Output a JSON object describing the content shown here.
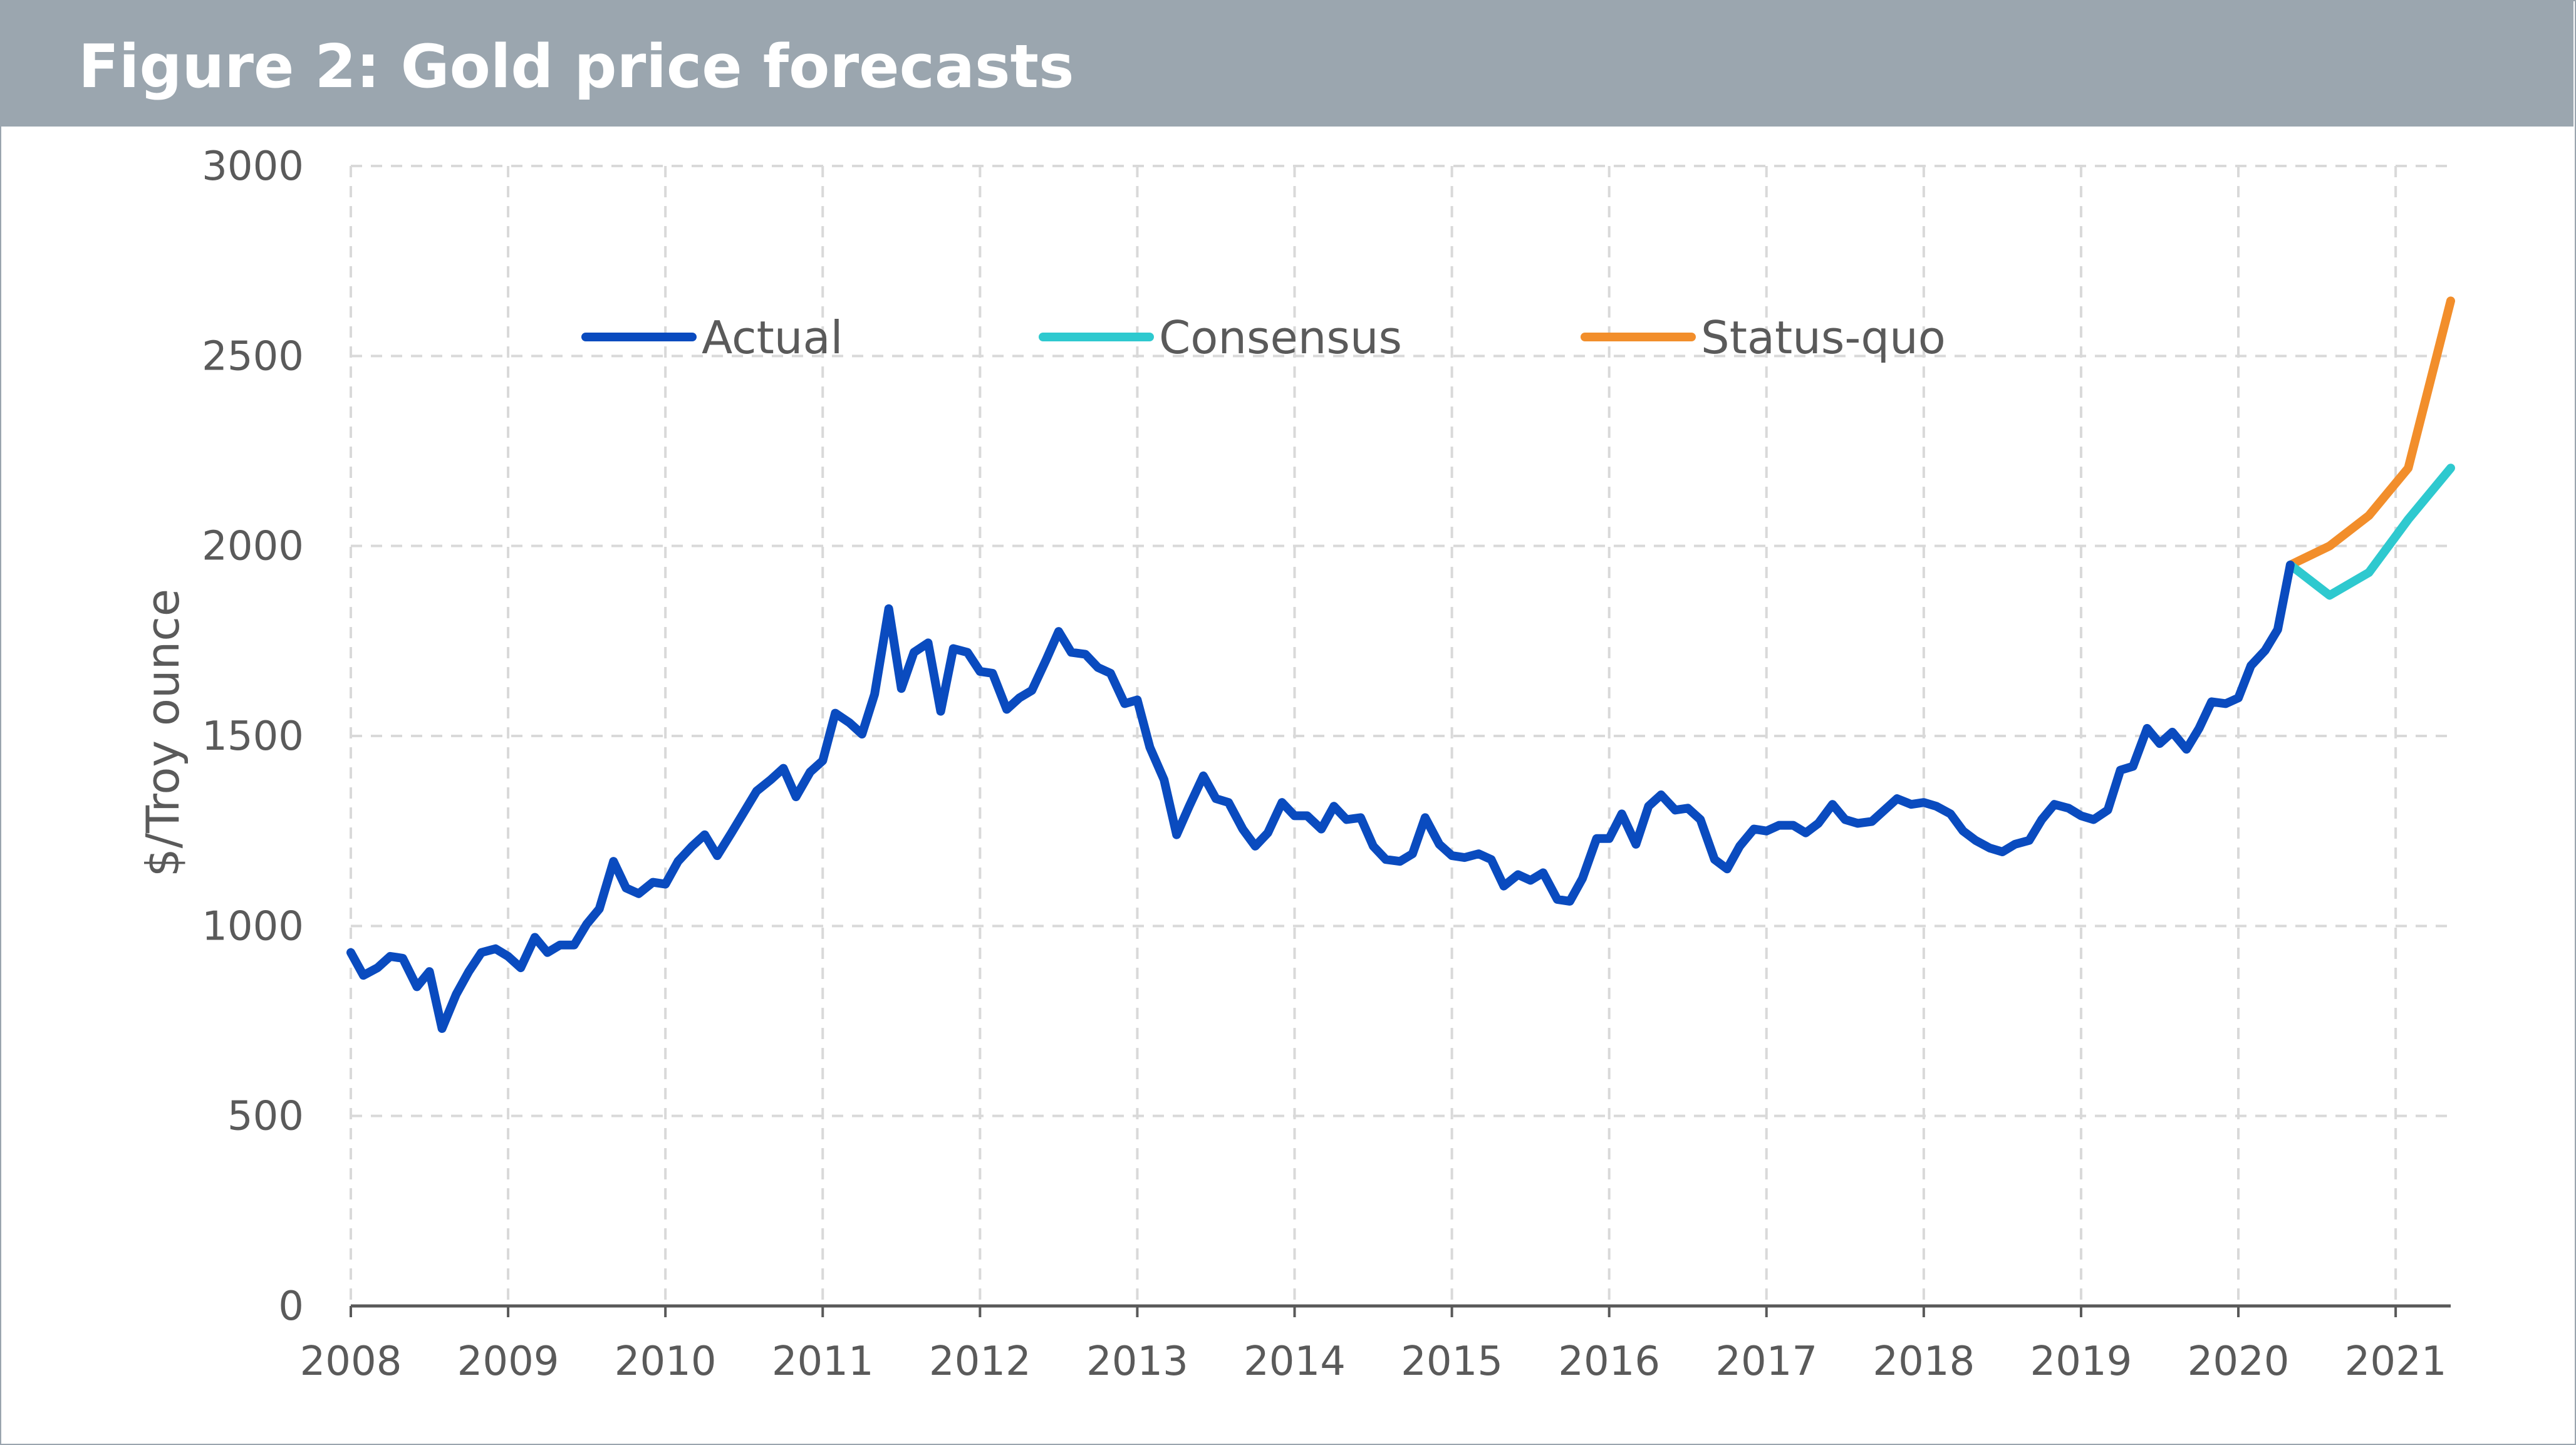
{
  "header": {
    "title": "Figure 2: Gold price forecasts"
  },
  "colors": {
    "actual": "#0a4bbf",
    "consensus": "#2ec9cf",
    "status_quo": "#f28e2b",
    "grid": "#d9d9d9",
    "axis": "#595959",
    "title_bar": "#9ba6af"
  },
  "chart_data": {
    "type": "line",
    "title": "Figure 2: Gold price forecasts",
    "xlabel": "",
    "ylabel": "$/Troy ounce",
    "xlim": [
      2008.0,
      2021.35
    ],
    "ylim": [
      0,
      3000
    ],
    "x_ticks": [
      "2008",
      "2009",
      "2010",
      "2011",
      "2012",
      "2013",
      "2014",
      "2015",
      "2016",
      "2017",
      "2018",
      "2019",
      "2020",
      "2021"
    ],
    "y_ticks": [
      "0",
      "500",
      "1000",
      "1500",
      "2000",
      "2500",
      "3000"
    ],
    "grid": "dashed-both",
    "legend": "top-center",
    "series": [
      {
        "name": "Actual",
        "color": "#0a4bbf",
        "x": [
          2008.0,
          2008.08,
          2008.17,
          2008.25,
          2008.33,
          2008.42,
          2008.5,
          2008.58,
          2008.67,
          2008.75,
          2008.83,
          2008.92,
          2009.0,
          2009.08,
          2009.17,
          2009.25,
          2009.33,
          2009.42,
          2009.5,
          2009.58,
          2009.67,
          2009.75,
          2009.83,
          2009.92,
          2010.0,
          2010.08,
          2010.17,
          2010.25,
          2010.33,
          2010.42,
          2010.5,
          2010.58,
          2010.67,
          2010.75,
          2010.83,
          2010.92,
          2011.0,
          2011.08,
          2011.17,
          2011.25,
          2011.33,
          2011.42,
          2011.5,
          2011.58,
          2011.67,
          2011.75,
          2011.83,
          2011.92,
          2012.0,
          2012.08,
          2012.17,
          2012.25,
          2012.33,
          2012.42,
          2012.5,
          2012.58,
          2012.67,
          2012.75,
          2012.83,
          2012.92,
          2013.0,
          2013.08,
          2013.17,
          2013.25,
          2013.33,
          2013.42,
          2013.5,
          2013.58,
          2013.67,
          2013.75,
          2013.83,
          2013.92,
          2014.0,
          2014.08,
          2014.17,
          2014.25,
          2014.33,
          2014.42,
          2014.5,
          2014.58,
          2014.67,
          2014.75,
          2014.83,
          2014.92,
          2015.0,
          2015.08,
          2015.17,
          2015.25,
          2015.33,
          2015.42,
          2015.5,
          2015.58,
          2015.67,
          2015.75,
          2015.83,
          2015.92,
          2016.0,
          2016.08,
          2016.17,
          2016.25,
          2016.33,
          2016.42,
          2016.5,
          2016.58,
          2016.67,
          2016.75,
          2016.83,
          2016.92,
          2017.0,
          2017.08,
          2017.17,
          2017.25,
          2017.33,
          2017.42,
          2017.5,
          2017.58,
          2017.67,
          2017.75,
          2017.83,
          2017.92,
          2018.0,
          2018.08,
          2018.17,
          2018.25,
          2018.33,
          2018.42,
          2018.5,
          2018.58,
          2018.67,
          2018.75,
          2018.83,
          2018.92,
          2019.0,
          2019.08,
          2019.17,
          2019.25,
          2019.33,
          2019.42,
          2019.5,
          2019.58,
          2019.67,
          2019.75,
          2019.83,
          2019.92,
          2020.0,
          2020.08,
          2020.17,
          2020.25,
          2020.33
        ],
        "values": [
          930,
          870,
          890,
          920,
          915,
          840,
          880,
          730,
          820,
          880,
          930,
          940,
          920,
          890,
          970,
          930,
          950,
          950,
          1005,
          1045,
          1170,
          1100,
          1085,
          1115,
          1110,
          1170,
          1210,
          1240,
          1185,
          1245,
          1300,
          1355,
          1385,
          1415,
          1340,
          1405,
          1435,
          1560,
          1535,
          1505,
          1610,
          1835,
          1625,
          1720,
          1745,
          1565,
          1730,
          1720,
          1670,
          1665,
          1570,
          1600,
          1620,
          1700,
          1775,
          1720,
          1715,
          1680,
          1665,
          1585,
          1595,
          1470,
          1385,
          1240,
          1315,
          1395,
          1335,
          1325,
          1255,
          1210,
          1245,
          1325,
          1290,
          1290,
          1255,
          1315,
          1280,
          1285,
          1210,
          1175,
          1170,
          1190,
          1285,
          1215,
          1185,
          1180,
          1190,
          1175,
          1105,
          1135,
          1120,
          1140,
          1070,
          1065,
          1125,
          1230,
          1230,
          1295,
          1215,
          1315,
          1345,
          1305,
          1310,
          1280,
          1175,
          1150,
          1210,
          1255,
          1250,
          1265,
          1265,
          1245,
          1270,
          1320,
          1280,
          1270,
          1275,
          1305,
          1335,
          1320,
          1325,
          1315,
          1295,
          1250,
          1225,
          1205,
          1195,
          1215,
          1225,
          1280,
          1320,
          1310,
          1290,
          1280,
          1305,
          1410,
          1420,
          1520,
          1480,
          1510,
          1465,
          1520,
          1590,
          1585,
          1600,
          1685,
          1725,
          1780,
          1950
        ]
      },
      {
        "name": "Consensus",
        "color": "#2ec9cf",
        "x": [
          2020.33,
          2020.58,
          2020.83,
          2021.08,
          2021.35
        ],
        "values": [
          1950,
          1870,
          1930,
          2070,
          2205
        ]
      },
      {
        "name": "Status-quo",
        "color": "#f28e2b",
        "x": [
          2020.33,
          2020.58,
          2020.83,
          2021.08,
          2021.35
        ],
        "values": [
          1950,
          2000,
          2080,
          2205,
          2645
        ]
      }
    ]
  }
}
